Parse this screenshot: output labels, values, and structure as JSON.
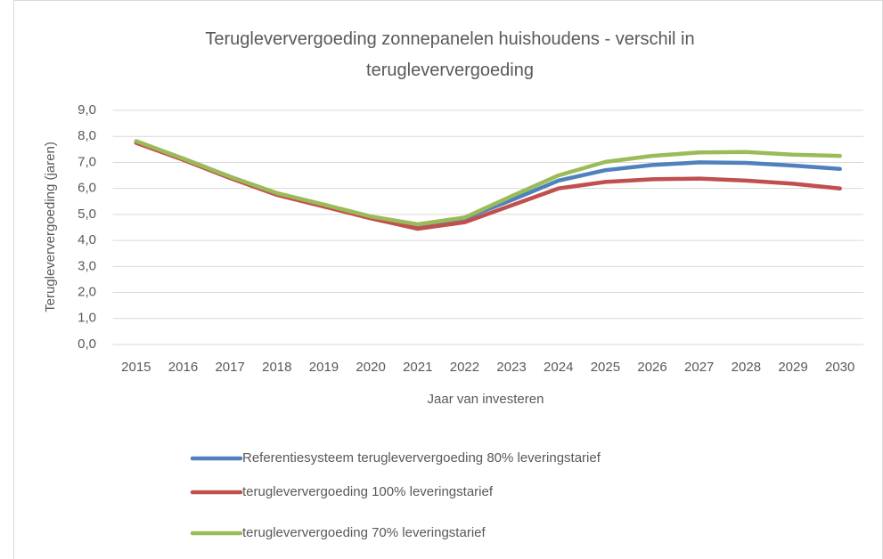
{
  "chart_data": {
    "type": "line",
    "title": "Terugleververgoeding zonnepanelen huishoudens - verschil in terugleververgoeding",
    "x_label": "Jaar van investeren",
    "y_label": "Terugleververgoeding (jaren)",
    "categories": [
      "2015",
      "2016",
      "2017",
      "2018",
      "2019",
      "2020",
      "2021",
      "2022",
      "2023",
      "2024",
      "2025",
      "2026",
      "2027",
      "2028",
      "2029",
      "2030"
    ],
    "series": [
      {
        "name": "Referentiesysteem terugleververgoeding 80% leveringstarief",
        "color": "#4f81bd",
        "values": [
          7.8,
          7.15,
          6.45,
          5.8,
          5.35,
          4.9,
          4.6,
          4.85,
          5.55,
          6.3,
          6.7,
          6.9,
          7.0,
          6.98,
          6.88,
          6.75
        ]
      },
      {
        "name": "terugleververgoeding 100% leveringstarief",
        "color": "#c0504d",
        "values": [
          7.75,
          7.1,
          6.4,
          5.75,
          5.3,
          4.85,
          4.45,
          4.7,
          5.35,
          6.0,
          6.25,
          6.35,
          6.38,
          6.3,
          6.18,
          6.0
        ]
      },
      {
        "name": "terugleververgoeding 70% leveringstarief",
        "color": "#9bbb59",
        "values": [
          7.82,
          7.15,
          6.45,
          5.82,
          5.38,
          4.92,
          4.62,
          4.88,
          5.7,
          6.5,
          7.02,
          7.25,
          7.38,
          7.4,
          7.3,
          7.25
        ]
      }
    ],
    "ylim": [
      0,
      9
    ],
    "yticks": [
      {
        "value": 0,
        "label": "0,0"
      },
      {
        "value": 1,
        "label": "1,0"
      },
      {
        "value": 2,
        "label": "2,0"
      },
      {
        "value": 3,
        "label": "3,0"
      },
      {
        "value": 4,
        "label": "4,0"
      },
      {
        "value": 5,
        "label": "5,0"
      },
      {
        "value": 6,
        "label": "6,0"
      },
      {
        "value": 7,
        "label": "7,0"
      },
      {
        "value": 8,
        "label": "8,0"
      },
      {
        "value": 9,
        "label": "9,0"
      }
    ],
    "grid": true,
    "legend": "bottom"
  }
}
